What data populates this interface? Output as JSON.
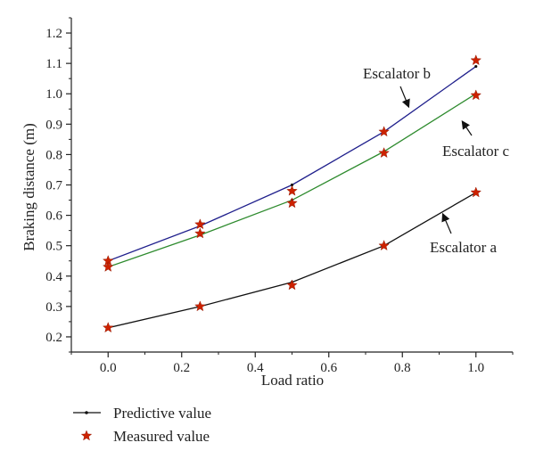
{
  "chart_data": {
    "type": "line",
    "xlabel": "Load ratio",
    "ylabel": "Braking distance (m)",
    "xlim": [
      -0.1,
      1.1
    ],
    "ylim": [
      0.15,
      1.25
    ],
    "xticks": [
      0.0,
      0.2,
      0.4,
      0.6,
      0.8,
      1.0
    ],
    "xtick_labels": [
      "0.0",
      "0.2",
      "0.4",
      "0.6",
      "0.8",
      "1.0"
    ],
    "yticks": [
      0.2,
      0.3,
      0.4,
      0.5,
      0.6,
      0.7,
      0.8,
      0.9,
      1.0,
      1.1,
      1.2
    ],
    "ytick_labels": [
      "0.2",
      "0.3",
      "0.4",
      "0.5",
      "0.6",
      "0.7",
      "0.8",
      "0.9",
      "1.0",
      "1.1",
      "1.2"
    ],
    "grid": false,
    "x": [
      0.0,
      0.25,
      0.5,
      0.75,
      1.0
    ],
    "series": [
      {
        "name": "Escalator b",
        "color": "#1f1f8c",
        "predicted": [
          0.45,
          0.565,
          0.7,
          0.875,
          1.09
        ],
        "measured": [
          0.45,
          0.57,
          0.68,
          0.875,
          1.11
        ]
      },
      {
        "name": "Escalator c",
        "color": "#2e8b2e",
        "predicted": [
          0.43,
          0.535,
          0.65,
          0.81,
          1.0
        ],
        "measured": [
          0.43,
          0.54,
          0.64,
          0.805,
          0.995
        ]
      },
      {
        "name": "Escalator a",
        "color": "#111111",
        "predicted": [
          0.23,
          0.3,
          0.38,
          0.5,
          0.675
        ],
        "measured": [
          0.23,
          0.3,
          0.37,
          0.5,
          0.675
        ]
      }
    ],
    "annotations": [
      "Escalator b",
      "Escalator c",
      "Escalator a"
    ],
    "legend": {
      "position": "bottom-left",
      "items": [
        "Predictive value",
        "Measured value"
      ]
    },
    "marker_color": "#cc2200"
  }
}
